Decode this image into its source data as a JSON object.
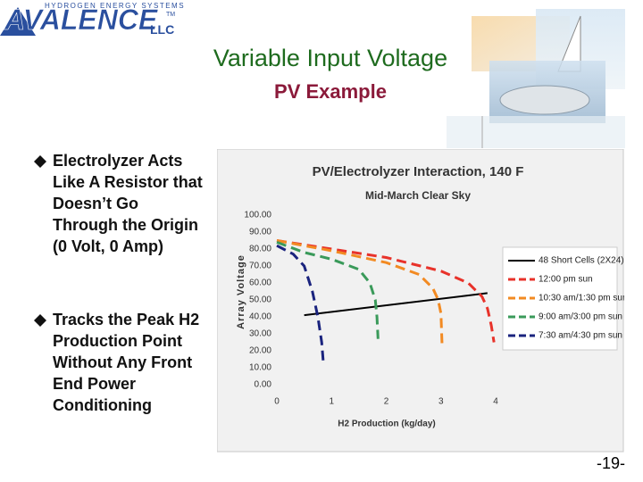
{
  "logo": {
    "name": "AVALENCE",
    "suffix": "LLC",
    "tagline": "HYDROGEN ENERGY SYSTEMS",
    "tm": "TM"
  },
  "title": "Variable Input Voltage",
  "subtitle": "PV Example",
  "bullets": [
    "Electrolyzer Acts Like A Resistor that Doesn’t Go Through the Origin (0 Volt, 0 Amp)",
    "Tracks the Peak H2 Production Point Without Any Front End Power Conditioning"
  ],
  "chart_data": {
    "type": "line",
    "title": "PV/Electrolyzer Interaction, 140 F",
    "subtitle": "Mid-March Clear Sky",
    "x_label": "H2 Production (kg/day)",
    "y_label": "Array Voltage",
    "xlim": [
      0,
      4
    ],
    "xticks": [
      0,
      1,
      2,
      3,
      4
    ],
    "ylim": [
      0,
      100
    ],
    "yticks": [
      {
        "value": 0,
        "label": "0.00"
      },
      {
        "value": 10,
        "label": "10.00"
      },
      {
        "value": 20,
        "label": "20.00"
      },
      {
        "value": 30,
        "label": "30.00"
      },
      {
        "value": 40,
        "label": "40.00"
      },
      {
        "value": 50,
        "label": "50.00"
      },
      {
        "value": 60,
        "label": "60.00"
      },
      {
        "value": 70,
        "label": "70.00"
      },
      {
        "value": 80,
        "label": "80.00"
      },
      {
        "value": 90,
        "label": "90.00"
      },
      {
        "value": 100,
        "label": "100.00"
      }
    ],
    "series": [
      {
        "name": "48 Short Cells (2X24)",
        "color": "#000000",
        "dashed": false,
        "x": [
          0.5,
          3.85
        ],
        "values": [
          41,
          54
        ]
      },
      {
        "name": "12:00 pm sun",
        "color": "#e8322a",
        "dashed": true,
        "x": [
          0,
          1,
          2,
          3,
          3.5,
          3.75,
          3.85,
          3.92,
          3.97
        ],
        "values": [
          85,
          80,
          75,
          67,
          60,
          52,
          45,
          35,
          25
        ]
      },
      {
        "name": "10:30 am/1:30 pm sun",
        "color": "#f28a22",
        "dashed": true,
        "x": [
          0,
          1,
          2,
          2.6,
          2.85,
          2.95,
          3.0,
          3.02
        ],
        "values": [
          85,
          79,
          72,
          65,
          57,
          50,
          42,
          24
        ]
      },
      {
        "name": "9:00 am/3:00 pm sun",
        "color": "#3a9a5a",
        "dashed": true,
        "x": [
          0,
          0.5,
          1,
          1.5,
          1.7,
          1.8,
          1.83,
          1.85
        ],
        "values": [
          84,
          78,
          74,
          68,
          60,
          50,
          40,
          27
        ]
      },
      {
        "name": "7:30 am/4:30 pm sun",
        "color": "#1a237e",
        "dashed": true,
        "x": [
          0,
          0.3,
          0.5,
          0.65,
          0.75,
          0.82,
          0.85
        ],
        "values": [
          82,
          77,
          70,
          55,
          40,
          25,
          13
        ]
      }
    ]
  },
  "page_number": "-19-"
}
